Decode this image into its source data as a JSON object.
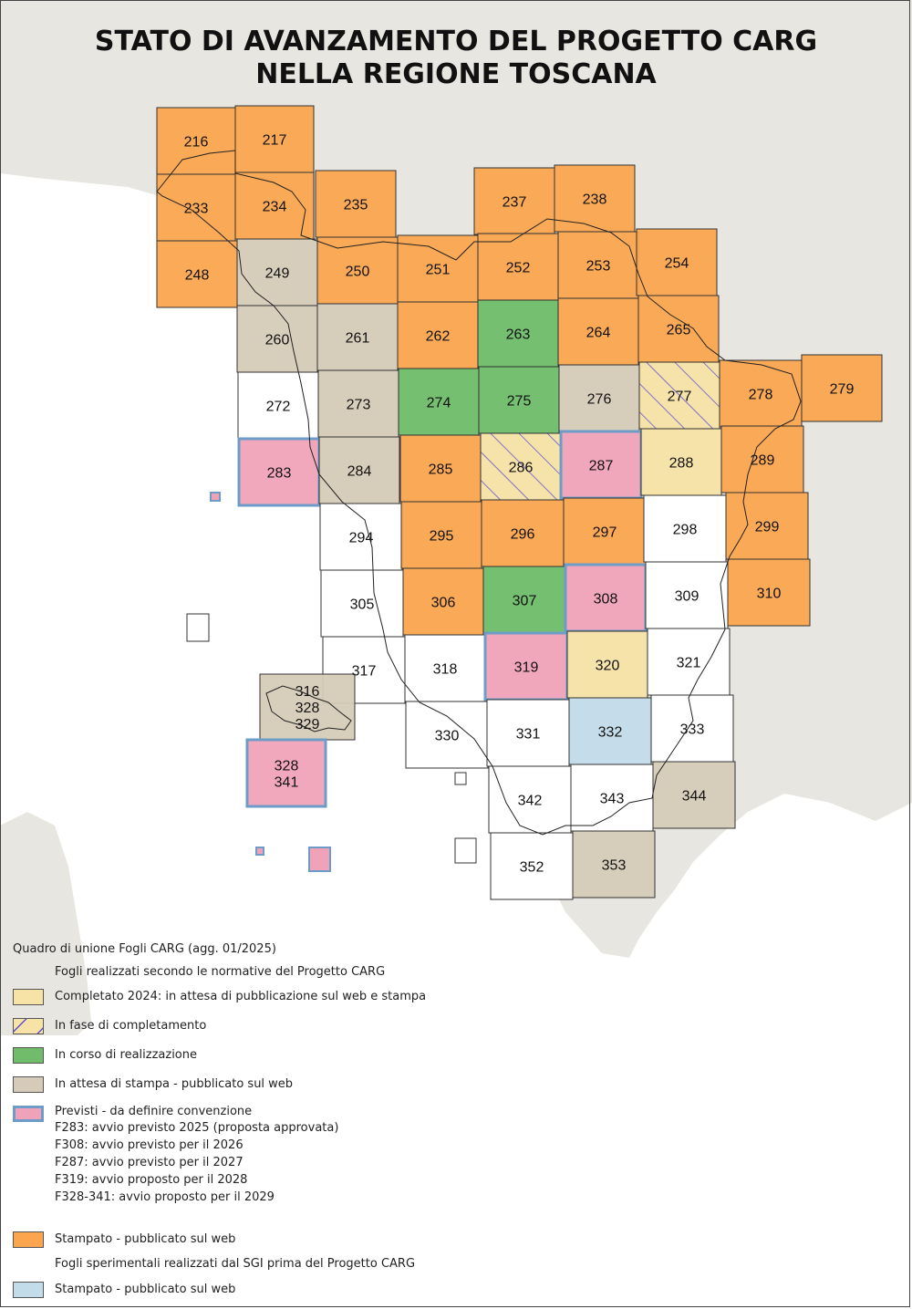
{
  "title_lines": [
    "STATO DI AVANZAMENTO DEL PROGETTO CARG",
    "NELLA REGIONE TOSCANA"
  ],
  "status_colors": {
    "stampato": "#fba54e",
    "corso": "#6fbd6a",
    "attesa_stampa": "#d6cbb8",
    "previsti": "#f0a2b8",
    "completato": "#f7e3a6",
    "fase": "#f7e3a6",
    "sperimentale": "#c3dcea",
    "none": "#ffffff",
    "sea": "#ffffff",
    "land": "#e8e6e1",
    "hatch": "#5a4fd0",
    "previsti_border": "#6d9cc8"
  },
  "sheets": [
    {
      "label": "216",
      "status": "stampato"
    },
    {
      "label": "217",
      "status": "stampato"
    },
    {
      "label": "233",
      "status": "stampato"
    },
    {
      "label": "234",
      "status": "stampato"
    },
    {
      "label": "235",
      "status": "stampato"
    },
    {
      "label": "237",
      "status": "stampato"
    },
    {
      "label": "238",
      "status": "stampato"
    },
    {
      "label": "248",
      "status": "stampato"
    },
    {
      "label": "249",
      "status": "attesa_stampa"
    },
    {
      "label": "250",
      "status": "stampato"
    },
    {
      "label": "251",
      "status": "stampato"
    },
    {
      "label": "252",
      "status": "stampato"
    },
    {
      "label": "253",
      "status": "stampato"
    },
    {
      "label": "254",
      "status": "stampato"
    },
    {
      "label": "260",
      "status": "attesa_stampa"
    },
    {
      "label": "261",
      "status": "attesa_stampa"
    },
    {
      "label": "262",
      "status": "stampato"
    },
    {
      "label": "263",
      "status": "corso"
    },
    {
      "label": "264",
      "status": "stampato"
    },
    {
      "label": "265",
      "status": "stampato"
    },
    {
      "label": "272",
      "status": "none"
    },
    {
      "label": "273",
      "status": "attesa_stampa"
    },
    {
      "label": "274",
      "status": "corso"
    },
    {
      "label": "275",
      "status": "corso"
    },
    {
      "label": "276",
      "status": "attesa_stampa"
    },
    {
      "label": "277",
      "status": "fase"
    },
    {
      "label": "278",
      "status": "stampato"
    },
    {
      "label": "279",
      "status": "stampato"
    },
    {
      "label": "283",
      "status": "previsti"
    },
    {
      "label": "284",
      "status": "attesa_stampa"
    },
    {
      "label": "285",
      "status": "stampato"
    },
    {
      "label": "286",
      "status": "fase"
    },
    {
      "label": "287",
      "status": "previsti"
    },
    {
      "label": "288",
      "status": "completato"
    },
    {
      "label": "289",
      "status": "stampato"
    },
    {
      "label": "294",
      "status": "none"
    },
    {
      "label": "295",
      "status": "stampato"
    },
    {
      "label": "296",
      "status": "stampato"
    },
    {
      "label": "297",
      "status": "stampato"
    },
    {
      "label": "298",
      "status": "none"
    },
    {
      "label": "299",
      "status": "stampato"
    },
    {
      "label": "305",
      "status": "none"
    },
    {
      "label": "306",
      "status": "stampato"
    },
    {
      "label": "307",
      "status": "corso"
    },
    {
      "label": "308",
      "status": "previsti"
    },
    {
      "label": "309",
      "status": "none"
    },
    {
      "label": "310",
      "status": "stampato"
    },
    {
      "label": "317",
      "status": "none"
    },
    {
      "label": "318",
      "status": "none"
    },
    {
      "label": "319",
      "status": "previsti"
    },
    {
      "label": "320",
      "status": "completato"
    },
    {
      "label": "321",
      "status": "none"
    },
    {
      "label": "330",
      "status": "none"
    },
    {
      "label": "331",
      "status": "none"
    },
    {
      "label": "332",
      "status": "sperimentale"
    },
    {
      "label": "333",
      "status": "none"
    },
    {
      "label": "342",
      "status": "none"
    },
    {
      "label": "343",
      "status": "none"
    },
    {
      "label": "344",
      "status": "attesa_stampa"
    },
    {
      "label": "352",
      "status": "none"
    },
    {
      "label": "353",
      "status": "attesa_stampa"
    },
    {
      "label": "316\n328\n329",
      "status": "attesa_stampa"
    },
    {
      "label": "328\n341",
      "status": "previsti"
    }
  ],
  "legend": {
    "title": "Quadro di unione Fogli CARG (agg. 01/2025)",
    "header1": "Fogli realizzati secondo le normative del Progetto CARG",
    "items": [
      {
        "status": "completato",
        "label": "Completato 2024: in attesa di pubblicazione sul web e stampa"
      },
      {
        "status": "fase",
        "label": "In fase di completamento"
      },
      {
        "status": "corso",
        "label": "In corso di realizzazione"
      },
      {
        "status": "attesa_stampa",
        "label": "In attesa di stampa - pubblicato sul web"
      },
      {
        "status": "previsti",
        "label": "Previsti - da definire convenzione"
      }
    ],
    "notes": [
      "F283: avvio previsto 2025 (proposta approvata)",
      "F308: avvio previsto per il 2026",
      "F287: avvio previsto per il 2027",
      "F319: avvio proposto per il 2028",
      "F328-341: avvio proposto per il 2029"
    ],
    "stampato": {
      "status": "stampato",
      "label": "Stampato - pubblicato sul web"
    },
    "header2": "Fogli sperimentali realizzati dal SGI prima del Progetto CARG",
    "sperimentale": {
      "status": "sperimentale",
      "label": "Stampato - pubblicato sul web"
    }
  }
}
